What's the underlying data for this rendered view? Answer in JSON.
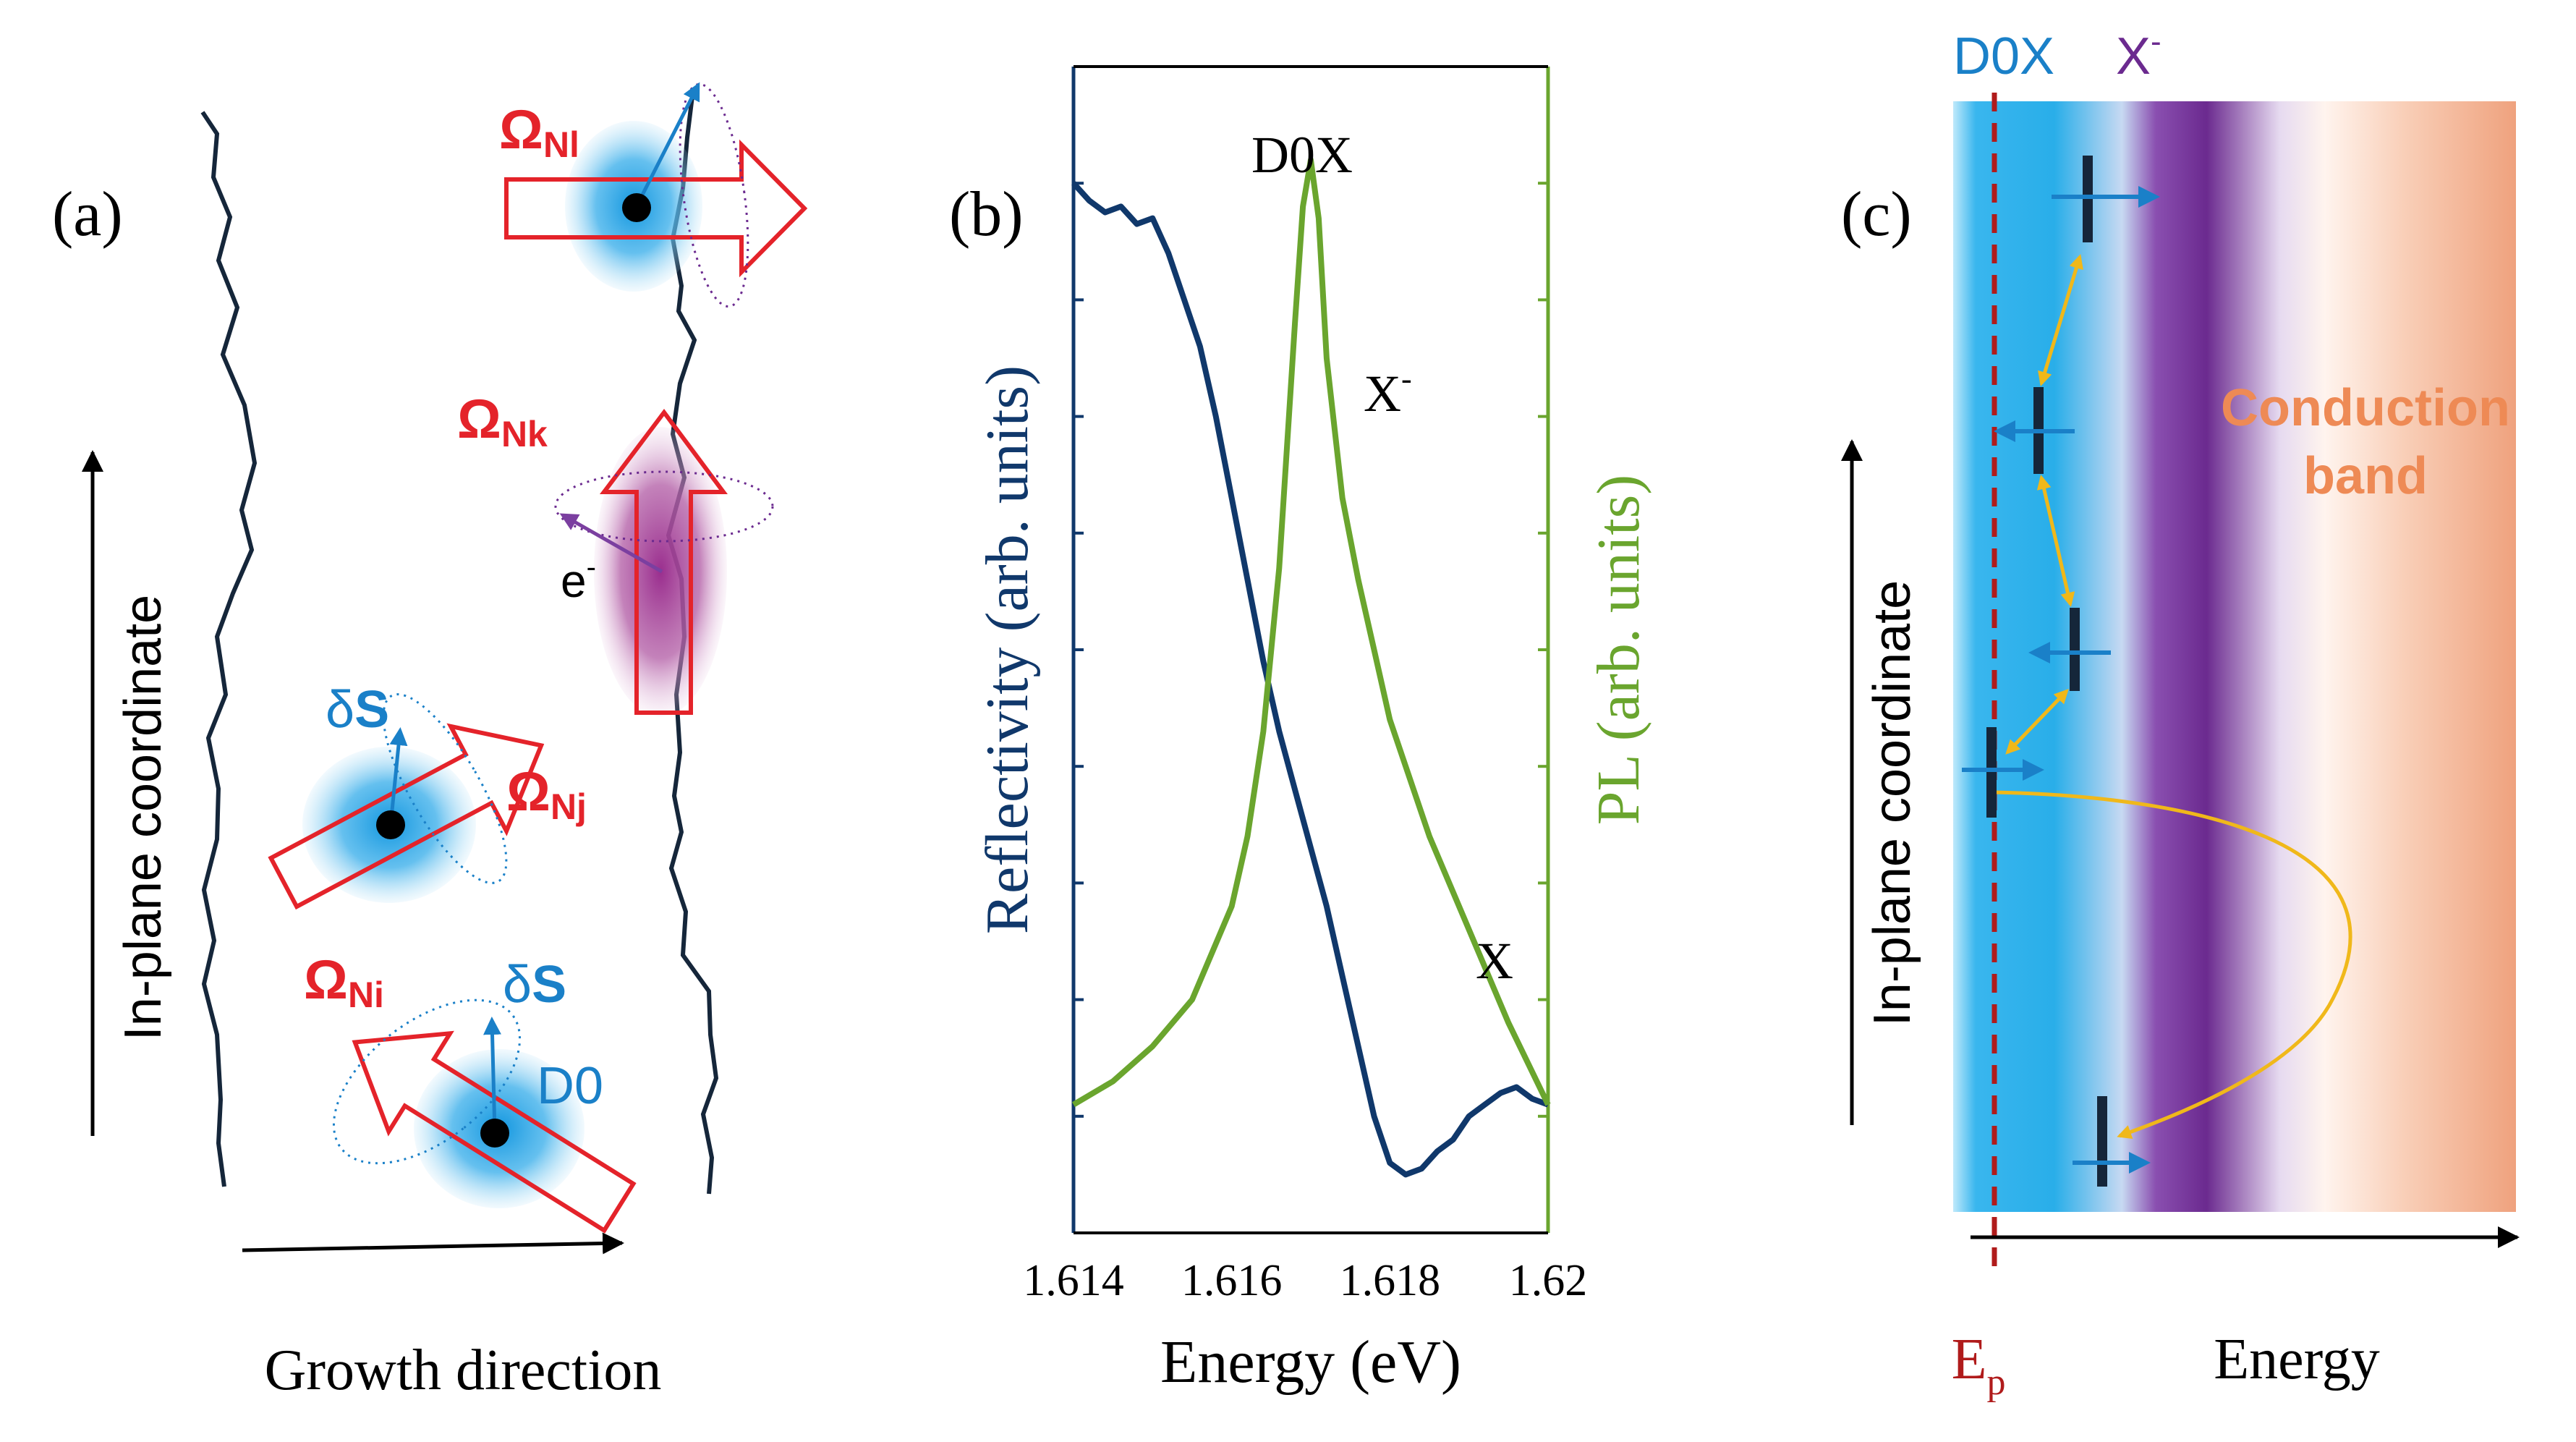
{
  "colors": {
    "red": "#e4232a",
    "blue": "#1a80c8",
    "navy": "#10386b",
    "dark_line": "#15263a",
    "green": "#6aa52e",
    "purple": "#6b2a8f",
    "gold": "#f0b81a",
    "orange_text": "#ee8a55",
    "ep_red": "#b01b1b"
  },
  "panel_a": {
    "label": "(a)",
    "y_axis_label": "In-plane coordinate",
    "x_axis_label": "Growth direction",
    "omega": "Ω",
    "omega_l_sub": "Nl",
    "omega_k_sub": "Nk",
    "omega_j_sub": "Nj",
    "omega_i_sub": "Ni",
    "delta": "δ",
    "s_letter": "S",
    "electron": "e",
    "electron_sup": "-",
    "donor_label": "D0"
  },
  "panel_b": {
    "label": "(b)",
    "y_left_label_1": "Reflectivity",
    "y_left_label_2": "(arb. units)",
    "y_right_label_1": "PL",
    "y_right_label_2": "(arb. units)",
    "x_label": "Energy (eV)",
    "peak_d0x": "D0X",
    "peak_xminus": "X",
    "peak_xminus_sup": "-",
    "peak_x": "X"
  },
  "panel_c": {
    "label": "(c)",
    "d0x_label": "D0X",
    "xminus_label": "X",
    "xminus_sup": "-",
    "conduction_1": "Conduction",
    "conduction_2": "band",
    "y_axis_label": "In-plane coordinate",
    "x_axis_label": "Energy",
    "ep_label": "E",
    "ep_sub": "p"
  },
  "chart_data": {
    "type": "line",
    "xlabel": "Energy (eV)",
    "ylabel_left": "Reflectivity (arb. units)",
    "ylabel_right": "PL (arb. units)",
    "xlim": [
      1.614,
      1.62
    ],
    "ylim": [
      0,
      1
    ],
    "xticks": [
      1.614,
      1.616,
      1.618,
      1.62
    ],
    "xtick_labels": [
      "1.614",
      "1.616",
      "1.618",
      "1.62"
    ],
    "left_tick_values": [
      0.1,
      0.2,
      0.3,
      0.4,
      0.5,
      0.6,
      0.7,
      0.8,
      0.9
    ],
    "right_tick_values": [
      0.1,
      0.2,
      0.3,
      0.4,
      0.5,
      0.6,
      0.7,
      0.8,
      0.9
    ],
    "annotations": [
      "D0X",
      "X-",
      "X"
    ],
    "series": [
      {
        "name": "Reflectivity",
        "color": "#10386b",
        "x": [
          1.614,
          1.6142,
          1.6144,
          1.6146,
          1.6148,
          1.615,
          1.6152,
          1.6154,
          1.6156,
          1.6158,
          1.616,
          1.6162,
          1.6164,
          1.6166,
          1.6168,
          1.617,
          1.6172,
          1.6174,
          1.6176,
          1.6178,
          1.618,
          1.6182,
          1.6184,
          1.6186,
          1.6188,
          1.619,
          1.6192,
          1.6194,
          1.6196,
          1.6198,
          1.62
        ],
        "y": [
          0.9,
          0.885,
          0.875,
          0.88,
          0.865,
          0.87,
          0.84,
          0.8,
          0.76,
          0.7,
          0.63,
          0.56,
          0.49,
          0.43,
          0.38,
          0.33,
          0.28,
          0.22,
          0.16,
          0.1,
          0.06,
          0.05,
          0.055,
          0.07,
          0.08,
          0.1,
          0.11,
          0.12,
          0.125,
          0.115,
          0.11
        ]
      },
      {
        "name": "PL",
        "color": "#6aa52e",
        "x": [
          1.614,
          1.6145,
          1.615,
          1.6155,
          1.616,
          1.6162,
          1.6164,
          1.6166,
          1.6168,
          1.6169,
          1.617,
          1.6171,
          1.6172,
          1.6174,
          1.6176,
          1.6178,
          1.618,
          1.6185,
          1.619,
          1.6195,
          1.62
        ],
        "y": [
          0.11,
          0.13,
          0.16,
          0.2,
          0.28,
          0.34,
          0.43,
          0.57,
          0.78,
          0.88,
          0.92,
          0.87,
          0.75,
          0.63,
          0.56,
          0.5,
          0.44,
          0.34,
          0.26,
          0.18,
          0.11
        ]
      }
    ]
  }
}
